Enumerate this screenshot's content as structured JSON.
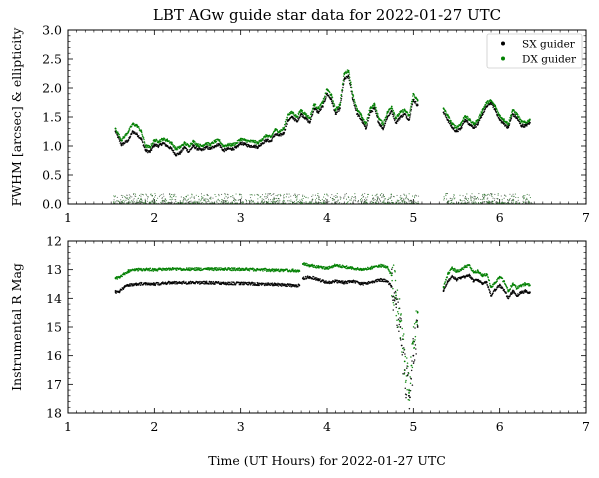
{
  "chart_data": [
    {
      "type": "scatter",
      "title": "LBT AGw guide star data for 2022-01-27 UTC",
      "xlabel": "",
      "ylabel": "FWHM [arcsec] & ellipticity",
      "xlim": [
        1,
        7
      ],
      "ylim": [
        0,
        3
      ],
      "x_ticks": [
        "1",
        "2",
        "3",
        "4",
        "5",
        "6",
        "7"
      ],
      "y_ticks": [
        "0.0",
        "0.5",
        "1.0",
        "1.5",
        "2.0",
        "2.5",
        "3.0"
      ],
      "legend": {
        "placement": "top-right",
        "entries": [
          "SX guider",
          "DX guider"
        ]
      },
      "series": [
        {
          "name": "SX guider",
          "color": "#000000",
          "segments": [
            {
              "x": [
                1.55,
                1.62,
                1.7,
                1.75,
                1.8,
                1.85,
                1.9,
                1.95,
                2.0,
                2.05,
                2.1,
                2.15,
                2.2,
                2.25,
                2.3,
                2.35,
                2.4,
                2.45,
                2.5,
                2.55,
                2.6,
                2.65,
                2.7,
                2.75,
                2.8,
                2.85,
                2.9,
                2.95,
                3.0,
                3.05,
                3.1,
                3.15,
                3.2,
                3.25,
                3.3,
                3.35,
                3.4,
                3.45,
                3.5,
                3.55,
                3.6,
                3.65,
                3.7,
                3.75,
                3.8,
                3.85,
                3.9,
                3.95,
                4.0,
                4.05,
                4.1,
                4.15,
                4.2,
                4.25,
                4.3,
                4.35,
                4.4,
                4.45,
                4.5,
                4.55,
                4.6,
                4.65,
                4.7,
                4.75,
                4.8,
                4.85,
                4.9,
                4.95,
                5.0,
                5.05
              ],
              "y": [
                1.25,
                1.02,
                1.1,
                1.25,
                1.2,
                1.12,
                0.92,
                0.9,
                1.02,
                1.0,
                1.05,
                1.0,
                0.95,
                0.85,
                0.88,
                0.98,
                0.9,
                1.0,
                0.95,
                0.93,
                0.98,
                0.95,
                1.0,
                1.03,
                0.92,
                0.95,
                0.95,
                0.97,
                1.05,
                1.03,
                1.0,
                1.0,
                0.98,
                1.05,
                1.1,
                1.08,
                1.2,
                1.18,
                1.22,
                1.45,
                1.5,
                1.42,
                1.55,
                1.48,
                1.4,
                1.65,
                1.58,
                1.68,
                1.9,
                1.8,
                1.55,
                1.65,
                2.15,
                2.2,
                1.8,
                1.55,
                1.45,
                1.3,
                1.58,
                1.65,
                1.4,
                1.3,
                1.5,
                1.6,
                1.4,
                1.5,
                1.55,
                1.45,
                1.8,
                1.7
              ]
            },
            {
              "x": [
                5.35,
                5.4,
                5.45,
                5.5,
                5.55,
                5.6,
                5.65,
                5.7,
                5.75,
                5.8,
                5.85,
                5.9,
                5.95,
                6.0,
                6.05,
                6.1,
                6.15,
                6.2,
                6.25,
                6.3,
                6.35
              ],
              "y": [
                1.58,
                1.45,
                1.32,
                1.25,
                1.3,
                1.45,
                1.38,
                1.32,
                1.38,
                1.55,
                1.68,
                1.75,
                1.62,
                1.45,
                1.38,
                1.32,
                1.55,
                1.48,
                1.35,
                1.35,
                1.4
              ]
            }
          ]
        },
        {
          "name": "DX guider",
          "color": "#008000",
          "segments": [
            {
              "x": [
                1.55,
                1.62,
                1.7,
                1.75,
                1.8,
                1.85,
                1.9,
                1.95,
                2.0,
                2.05,
                2.1,
                2.15,
                2.2,
                2.25,
                2.3,
                2.35,
                2.4,
                2.45,
                2.5,
                2.55,
                2.6,
                2.65,
                2.7,
                2.75,
                2.8,
                2.85,
                2.9,
                2.95,
                3.0,
                3.05,
                3.1,
                3.15,
                3.2,
                3.25,
                3.3,
                3.35,
                3.4,
                3.45,
                3.5,
                3.55,
                3.6,
                3.65,
                3.7,
                3.75,
                3.8,
                3.85,
                3.9,
                3.95,
                4.0,
                4.05,
                4.1,
                4.15,
                4.2,
                4.25,
                4.3,
                4.35,
                4.4,
                4.45,
                4.5,
                4.55,
                4.6,
                4.65,
                4.7,
                4.75,
                4.8,
                4.85,
                4.9,
                4.95,
                5.0,
                5.05
              ],
              "y": [
                1.3,
                1.1,
                1.25,
                1.38,
                1.35,
                1.25,
                1.0,
                0.98,
                1.1,
                1.08,
                1.12,
                1.1,
                1.05,
                0.95,
                0.98,
                1.05,
                1.0,
                1.08,
                1.02,
                1.0,
                1.05,
                1.02,
                1.08,
                1.1,
                1.0,
                1.02,
                1.02,
                1.05,
                1.12,
                1.1,
                1.08,
                1.08,
                1.05,
                1.12,
                1.18,
                1.15,
                1.28,
                1.25,
                1.3,
                1.55,
                1.58,
                1.5,
                1.62,
                1.55,
                1.48,
                1.72,
                1.65,
                1.75,
                1.98,
                1.88,
                1.62,
                1.72,
                2.25,
                2.3,
                1.88,
                1.62,
                1.52,
                1.38,
                1.65,
                1.72,
                1.48,
                1.38,
                1.58,
                1.68,
                1.48,
                1.58,
                1.62,
                1.52,
                1.9,
                1.78
              ]
            },
            {
              "x": [
                5.35,
                5.4,
                5.45,
                5.5,
                5.55,
                5.6,
                5.65,
                5.7,
                5.75,
                5.8,
                5.85,
                5.9,
                5.95,
                6.0,
                6.05,
                6.1,
                6.15,
                6.2,
                6.25,
                6.3,
                6.35
              ],
              "y": [
                1.65,
                1.52,
                1.38,
                1.32,
                1.38,
                1.52,
                1.45,
                1.38,
                1.45,
                1.62,
                1.75,
                1.78,
                1.68,
                1.52,
                1.45,
                1.38,
                1.62,
                1.55,
                1.42,
                1.4,
                1.45
              ]
            }
          ]
        }
      ]
    },
    {
      "type": "scatter",
      "title": "",
      "xlabel": "Time (UT Hours) for 2022-01-27 UTC",
      "ylabel": "Instrumental R Mag",
      "xlim": [
        1,
        7
      ],
      "ylim": [
        18,
        12
      ],
      "y_inverted": true,
      "x_ticks": [
        "1",
        "2",
        "3",
        "4",
        "5",
        "6",
        "7"
      ],
      "y_ticks": [
        "12",
        "13",
        "14",
        "15",
        "16",
        "17",
        "18"
      ],
      "series": [
        {
          "name": "SX guider",
          "color": "#000000",
          "segments": [
            {
              "x": [
                1.55,
                1.6,
                1.65,
                1.7,
                1.8,
                1.9,
                2.0,
                2.2,
                2.4,
                2.6,
                2.8,
                3.0,
                3.2,
                3.4,
                3.6,
                3.68
              ],
              "y": [
                13.78,
                13.75,
                13.62,
                13.55,
                13.5,
                13.48,
                13.5,
                13.45,
                13.45,
                13.45,
                13.48,
                13.48,
                13.5,
                13.52,
                13.55,
                13.55
              ]
            },
            {
              "x": [
                3.72,
                3.8,
                3.9,
                4.0,
                4.1,
                4.2,
                4.3,
                4.4,
                4.5,
                4.6,
                4.7,
                4.75,
                4.8,
                4.85,
                4.9,
                4.95,
                5.0,
                5.05
              ],
              "y": [
                13.3,
                13.25,
                13.35,
                13.45,
                13.4,
                13.45,
                13.4,
                13.5,
                13.45,
                13.35,
                13.4,
                13.6,
                14.2,
                15.0,
                16.5,
                17.4,
                16.0,
                15.0
              ]
            },
            {
              "x": [
                5.35,
                5.4,
                5.45,
                5.5,
                5.55,
                5.6,
                5.65,
                5.7,
                5.75,
                5.8,
                5.85,
                5.9,
                5.95,
                6.0,
                6.05,
                6.1,
                6.15,
                6.2,
                6.25,
                6.3,
                6.35
              ],
              "y": [
                13.75,
                13.4,
                13.25,
                13.35,
                13.3,
                13.25,
                13.2,
                13.4,
                13.35,
                13.5,
                13.45,
                13.9,
                13.7,
                13.55,
                13.7,
                14.0,
                13.75,
                13.9,
                13.8,
                13.75,
                13.8
              ]
            }
          ]
        },
        {
          "name": "DX guider",
          "color": "#008000",
          "segments": [
            {
              "x": [
                1.55,
                1.6,
                1.65,
                1.7,
                1.8,
                1.9,
                2.0,
                2.2,
                2.4,
                2.6,
                2.8,
                3.0,
                3.2,
                3.4,
                3.6,
                3.68
              ],
              "y": [
                13.3,
                13.28,
                13.15,
                13.05,
                13.0,
                13.0,
                13.0,
                12.98,
                12.98,
                12.98,
                12.98,
                12.98,
                13.0,
                13.02,
                13.03,
                13.05
              ]
            },
            {
              "x": [
                3.72,
                3.8,
                3.9,
                4.0,
                4.1,
                4.2,
                4.3,
                4.4,
                4.5,
                4.6,
                4.7,
                4.75,
                4.8,
                4.85,
                4.9,
                4.95,
                5.0,
                5.05
              ],
              "y": [
                12.8,
                12.85,
                12.9,
                12.95,
                12.85,
                12.9,
                12.95,
                13.0,
                12.95,
                12.85,
                12.9,
                13.2,
                13.9,
                14.8,
                16.2,
                17.3,
                15.5,
                14.5
              ]
            },
            {
              "x": [
                5.35,
                5.4,
                5.45,
                5.5,
                5.55,
                5.6,
                5.65,
                5.7,
                5.75,
                5.8,
                5.85,
                5.9,
                5.95,
                6.0,
                6.05,
                6.1,
                6.15,
                6.2,
                6.25,
                6.3,
                6.35
              ],
              "y": [
                13.6,
                13.15,
                12.95,
                13.05,
                13.0,
                12.9,
                12.85,
                13.1,
                13.05,
                13.2,
                13.15,
                13.6,
                13.45,
                13.25,
                13.4,
                13.75,
                13.5,
                13.65,
                13.55,
                13.5,
                13.55
              ]
            }
          ]
        }
      ]
    }
  ]
}
